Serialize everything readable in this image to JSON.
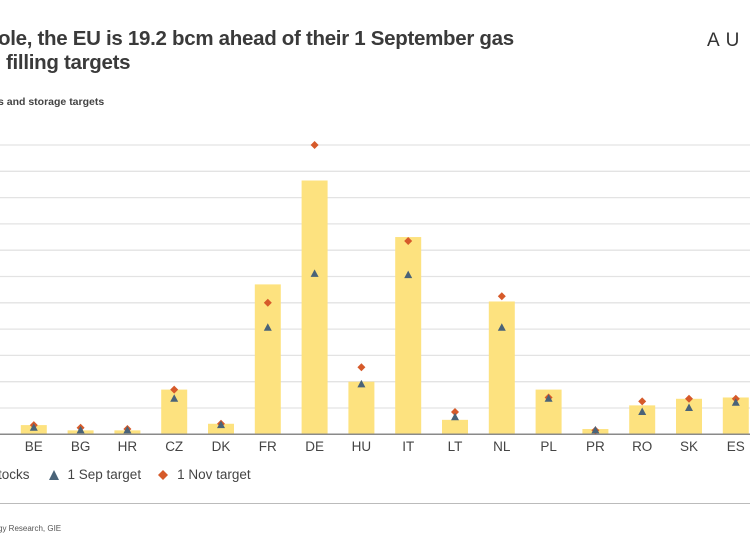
{
  "header": {
    "title_line1": "ole, the EU is 19.2 bcm ahead of their 1 September gas",
    "title_line2": "filling targets",
    "brand": "AU",
    "subtitle": "s and storage targets"
  },
  "footer": {
    "source": "gy Research, GIE"
  },
  "colors": {
    "stocks": "#fde27f",
    "sep_target": "#4a6378",
    "nov_target": "#d65a2a",
    "grid": "#e3e3e3",
    "axis": "#8a8a8a"
  },
  "chart_data": {
    "type": "bar",
    "categories": [
      "",
      "BE",
      "BG",
      "HR",
      "CZ",
      "DK",
      "FR",
      "DE",
      "HU",
      "IT",
      "LT",
      "NL",
      "PL",
      "PR",
      "RO",
      "SK",
      "ES"
    ],
    "series": [
      {
        "name": "tocks",
        "kind": "bar",
        "values": [
          6.0,
          0.7,
          0.3,
          0.3,
          3.4,
          0.8,
          11.4,
          19.3,
          4.0,
          15.0,
          1.1,
          10.1,
          3.4,
          0.4,
          2.2,
          2.7,
          2.8
        ]
      },
      {
        "name": "1 Sep target",
        "kind": "triangle",
        "values": [
          null,
          0.5,
          0.3,
          0.3,
          2.7,
          0.7,
          8.1,
          12.2,
          3.8,
          12.1,
          1.3,
          8.1,
          2.7,
          0.3,
          1.7,
          2.0,
          2.4
        ]
      },
      {
        "name": "1 Nov target",
        "kind": "diamond",
        "values": [
          null,
          0.7,
          0.5,
          0.4,
          3.4,
          0.8,
          10.0,
          22.0,
          5.1,
          14.7,
          1.7,
          10.5,
          2.8,
          0.3,
          2.5,
          2.7,
          2.7
        ]
      }
    ],
    "ylim": [
      0,
      22
    ],
    "grid": true,
    "legend_placement": "bottom-left"
  }
}
